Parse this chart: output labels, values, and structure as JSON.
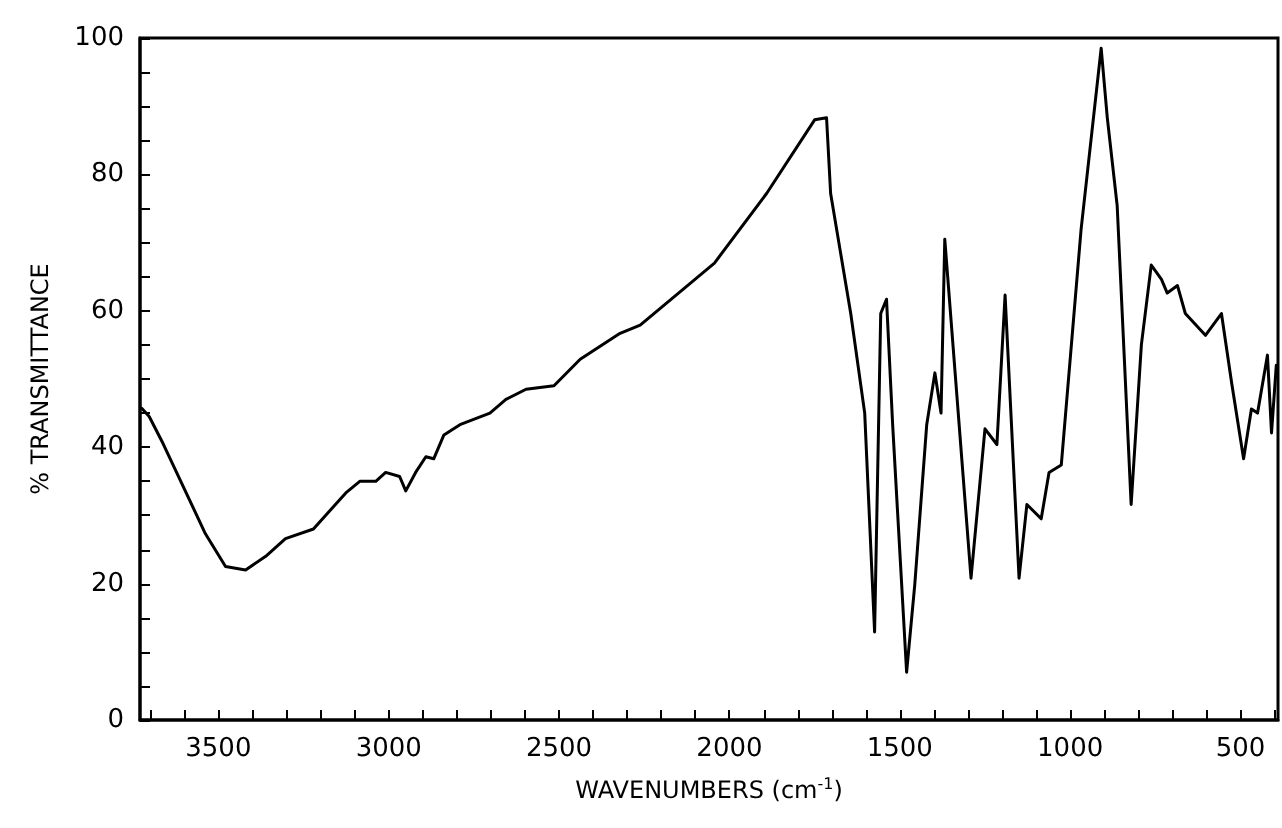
{
  "chart_data": {
    "type": "line",
    "xlabel": "WAVENUMBERS (cm$^{-1}$)",
    "ylabel": "% TRANSMITTANCE",
    "xlim": [
      3730,
      390
    ],
    "ylim": [
      0,
      100
    ],
    "xticks": [
      {
        "value": 3700,
        "label": null
      },
      {
        "value": 3600,
        "label": null
      },
      3500,
      {
        "value": 3400,
        "label": null
      },
      {
        "value": 3300,
        "label": null
      },
      {
        "value": 3200,
        "label": null
      },
      {
        "value": 3100,
        "label": null
      },
      3000,
      {
        "value": 2900,
        "label": null
      },
      {
        "value": 2800,
        "label": null
      },
      {
        "value": 2700,
        "label": null
      },
      {
        "value": 2600,
        "label": null
      },
      2500,
      {
        "value": 2400,
        "label": null
      },
      {
        "value": 2300,
        "label": null
      },
      {
        "value": 2200,
        "label": null
      },
      {
        "value": 2100,
        "label": null
      },
      2000,
      {
        "value": 1900,
        "label": null
      },
      {
        "value": 1800,
        "label": null
      },
      {
        "value": 1700,
        "label": null
      },
      {
        "value": 1600,
        "label": null
      },
      1500,
      {
        "value": 1400,
        "label": null
      },
      {
        "value": 1300,
        "label": null
      },
      {
        "value": 1200,
        "label": null
      },
      {
        "value": 1100,
        "label": null
      },
      1000,
      {
        "value": 900,
        "label": null
      },
      {
        "value": 800,
        "label": null
      },
      {
        "value": 700,
        "label": null
      },
      {
        "value": 600,
        "label": null
      },
      500,
      {
        "value": 400,
        "label": null
      }
    ],
    "yticks": [
      0,
      {
        "value": 5,
        "label": null
      },
      {
        "value": 10,
        "label": null
      },
      {
        "value": 15,
        "label": null
      },
      20,
      {
        "value": 25,
        "label": null
      },
      {
        "value": 30,
        "label": null
      },
      {
        "value": 35,
        "label": null
      },
      40,
      {
        "value": 45,
        "label": null
      },
      {
        "value": 50,
        "label": null
      },
      {
        "value": 55,
        "label": null
      },
      60,
      {
        "value": 65,
        "label": null
      },
      {
        "value": 70,
        "label": null
      },
      {
        "value": 75,
        "label": null
      },
      80,
      {
        "value": 85,
        "label": null
      },
      {
        "value": 90,
        "label": null
      },
      {
        "value": 95,
        "label": null
      },
      100
    ],
    "grid": false,
    "marker": "none",
    "line_style": "solid",
    "series": [
      {
        "color": "#000000",
        "x": [
          3725,
          3703,
          3662,
          3538,
          3479,
          3420,
          3361,
          3303,
          3221,
          3126,
          3085,
          3038,
          3009,
          2968,
          2950,
          2921,
          2891,
          2868,
          2838,
          2791,
          2703,
          2656,
          2597,
          2515,
          2438,
          2321,
          2262,
          2044,
          1891,
          1750,
          1715,
          1703,
          1644,
          1603,
          1574,
          1556,
          1539,
          1521,
          1480,
          1456,
          1421,
          1397,
          1379,
          1368,
          1291,
          1250,
          1215,
          1191,
          1150,
          1127,
          1085,
          1062,
          1026,
          968,
          909,
          891,
          862,
          821,
          791,
          762,
          732,
          715,
          685,
          662,
          603,
          556,
          526,
          491,
          468,
          450,
          421,
          409,
          395
        ],
        "values": [
          45.7,
          44.5,
          40.5,
          27.3,
          22.5,
          22,
          24,
          26.6,
          28,
          33.3,
          35,
          35,
          36.3,
          35.7,
          33.6,
          36.3,
          38.6,
          38.3,
          41.8,
          43.3,
          45,
          47,
          48.5,
          49,
          52.9,
          56.7,
          57.9,
          67,
          77.2,
          88,
          88.3,
          77.2,
          59.6,
          45,
          12.9,
          59.6,
          61.7,
          43.3,
          7,
          19.9,
          43.3,
          50.9,
          45,
          70.5,
          20.8,
          42.7,
          40.4,
          62.3,
          20.8,
          31.6,
          29.5,
          36.3,
          37.4,
          71.9,
          98.5,
          88.3,
          75.4,
          31.6,
          55,
          66.7,
          64.6,
          62.6,
          63.7,
          59.6,
          56.4,
          59.6,
          49.4,
          38.3,
          45.6,
          45,
          53.5,
          42.1,
          52
        ]
      }
    ]
  }
}
